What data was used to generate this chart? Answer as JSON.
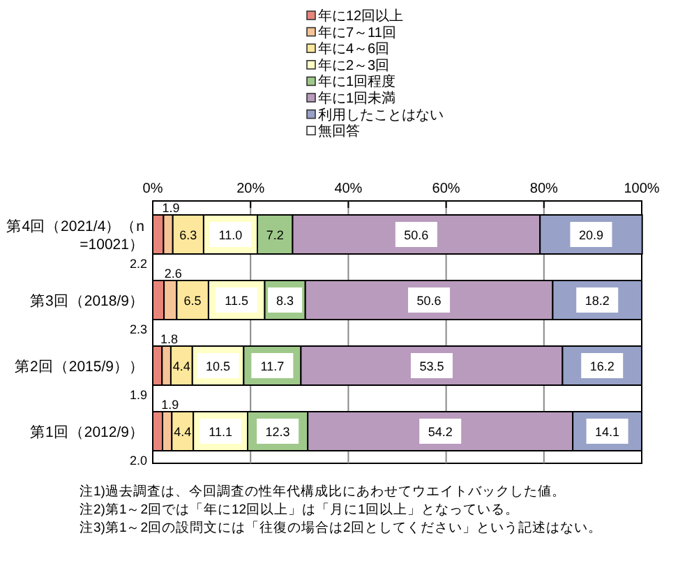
{
  "chart_data": {
    "type": "bar",
    "orientation": "horizontal",
    "stacked": true,
    "categories": [
      "第4回（2021/4）（n=10021）",
      "第3回（2018/9）",
      "第2回（2015/9））",
      "第1回（2012/9）"
    ],
    "series": [
      {
        "name": "年に12回以上",
        "color": "#e8857a",
        "values": [
          2.2,
          2.3,
          1.9,
          2.0
        ],
        "value_labels": [
          "2.2",
          "2.3",
          "1.9",
          "2.0"
        ]
      },
      {
        "name": "年に7～11回",
        "color": "#f7c497",
        "values": [
          1.9,
          2.6,
          1.8,
          1.9
        ],
        "value_labels": [
          "1.9",
          "2.6",
          "1.8",
          "1.9"
        ]
      },
      {
        "name": "年に4～6回",
        "color": "#fde79c",
        "values": [
          6.3,
          6.5,
          4.4,
          4.4
        ],
        "value_labels": [
          "6.3",
          "6.5",
          "4.4",
          "4.4"
        ]
      },
      {
        "name": "年に2～3回",
        "color": "#ffffc6",
        "values": [
          11.0,
          11.5,
          10.5,
          11.1
        ],
        "value_labels": [
          "11.0",
          "11.5",
          "10.5",
          "11.1"
        ]
      },
      {
        "name": "年に1回程度",
        "color": "#9fc98a",
        "values": [
          7.2,
          8.3,
          11.7,
          12.3
        ],
        "value_labels": [
          "7.2",
          "8.3",
          "11.7",
          "12.3"
        ]
      },
      {
        "name": "年に1回未満",
        "color": "#b99bbd",
        "values": [
          50.6,
          50.6,
          53.5,
          54.2
        ],
        "value_labels": [
          "50.6",
          "50.6",
          "53.5",
          "54.2"
        ]
      },
      {
        "name": "利用したことはない",
        "color": "#98a2c8",
        "values": [
          20.9,
          18.2,
          16.2,
          14.1
        ],
        "value_labels": [
          "20.9",
          "18.2",
          "16.2",
          "14.1"
        ]
      },
      {
        "name": "無回答",
        "color": "#ffffff",
        "values": [
          null,
          null,
          null,
          null
        ],
        "value_labels": [
          null,
          null,
          null,
          null
        ]
      }
    ],
    "xlim": [
      0,
      100
    ],
    "xticks": [
      {
        "value": 0,
        "label": "0%"
      },
      {
        "value": 20,
        "label": "20%"
      },
      {
        "value": 40,
        "label": "40%"
      },
      {
        "value": 60,
        "label": "60%"
      },
      {
        "value": 80,
        "label": "80%"
      },
      {
        "value": 100,
        "label": "100%"
      }
    ],
    "grid": "x",
    "legend": "top",
    "annotations": [
      "注1)過去調査は、今回調査の性年代構成比にあわせてウエイトバックした値。",
      "注2)第1～2回では「年に12回以上」は「月に1回以上」となっている。",
      "注3)第1～2回の設問文には「往復の場合は2回としてください」という記述はない。"
    ]
  }
}
